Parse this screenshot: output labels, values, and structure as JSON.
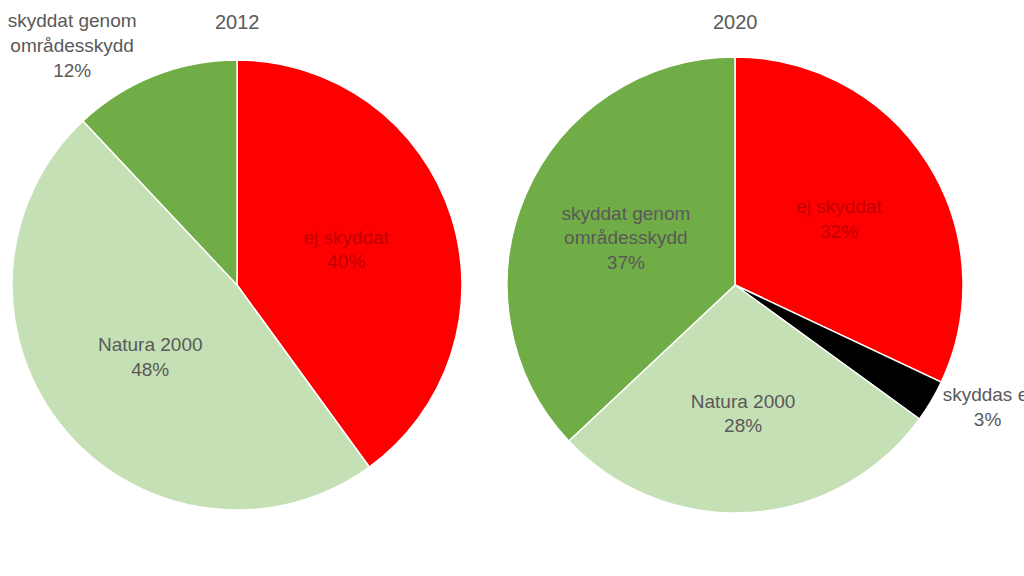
{
  "chart_data": [
    {
      "type": "pie",
      "title": "2012",
      "categories": [
        "ej skyddat",
        "Natura 2000",
        "skyddat genom områdesskydd"
      ],
      "values": [
        40,
        48,
        12
      ],
      "value_labels": [
        "40%",
        "48%",
        "12%"
      ],
      "colors": [
        "#ff0000",
        "#c5e0b4",
        "#70ad47"
      ],
      "data_labels": true
    },
    {
      "type": "pie",
      "title": "2020",
      "categories": [
        "ej skyddat",
        "skyddas ej",
        "Natura 2000",
        "skyddat genom områdesskydd"
      ],
      "values": [
        32,
        3,
        28,
        37
      ],
      "value_labels": [
        "32%",
        "3%",
        "28%",
        "37%"
      ],
      "colors": [
        "#ff0000",
        "#000000",
        "#c5e0b4",
        "#70ad47"
      ],
      "data_labels": true
    }
  ]
}
